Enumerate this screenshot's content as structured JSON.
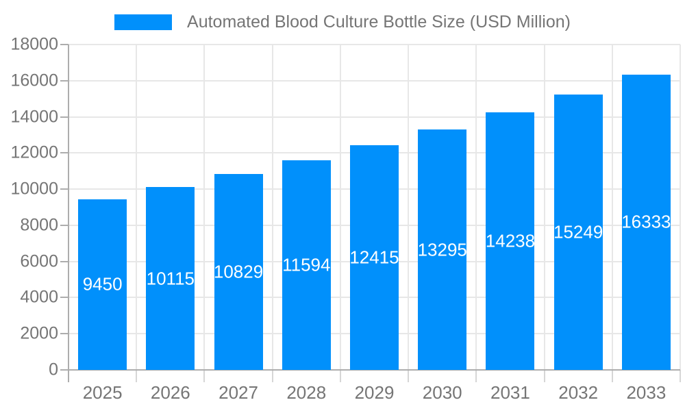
{
  "legend": {
    "label": "Automated Blood Culture Bottle Size (USD Million)"
  },
  "chart_data": {
    "type": "bar",
    "title": "Automated Blood Culture Bottle Size (USD Million)",
    "categories": [
      "2025",
      "2026",
      "2027",
      "2028",
      "2029",
      "2030",
      "2031",
      "2032",
      "2033"
    ],
    "series": [
      {
        "name": "Automated Blood Culture Bottle Size (USD Million)",
        "values": [
          9450,
          10115,
          10829,
          11594,
          12415,
          13295,
          14238,
          15249,
          16333
        ]
      }
    ],
    "value_labels": [
      "9450",
      "10115",
      "10829",
      "11594",
      "12415",
      "13295",
      "14238",
      "15249",
      "16333"
    ],
    "xlabel": "",
    "ylabel": "",
    "ylim": [
      0,
      18000
    ],
    "ytick_step": 2000,
    "yticks": [
      "0",
      "2000",
      "4000",
      "6000",
      "8000",
      "10000",
      "12000",
      "14000",
      "16000",
      "18000"
    ],
    "grid": true,
    "legend_position": "top",
    "colors": {
      "bar": "#0190FB",
      "value_label": "#ffffff",
      "axis_text": "#757575",
      "grid_line": "#e7e7e7",
      "axis_line": "#adadad",
      "minor_tick": "#d6d6d6"
    }
  }
}
